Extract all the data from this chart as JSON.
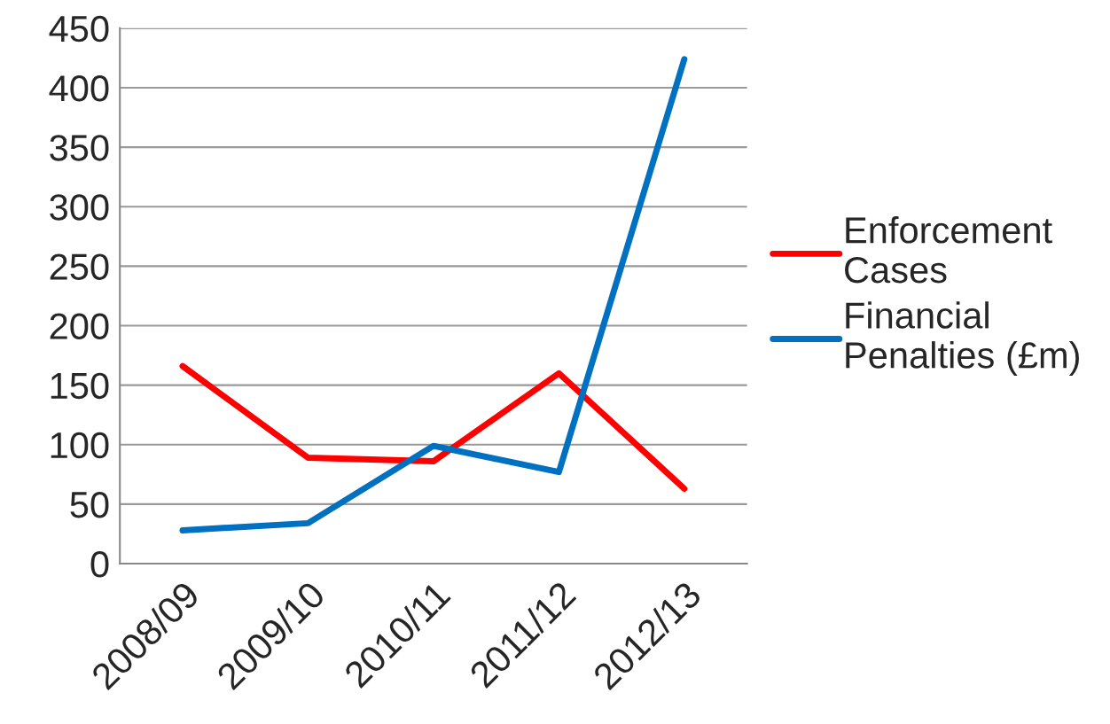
{
  "chart_data": {
    "type": "line",
    "categories": [
      "2008/09",
      "2009/10",
      "2010/11",
      "2011/12",
      "2012/13"
    ],
    "series": [
      {
        "name": "Enforcement\nCases",
        "color": "#ff0000",
        "values": [
          166,
          89,
          86,
          160,
          63
        ]
      },
      {
        "name": "Financial\nPenalties (£m)",
        "color": "#0070c0",
        "values": [
          28,
          34,
          99,
          77,
          424
        ]
      }
    ],
    "ylim": [
      0,
      450
    ],
    "yticks": [
      0,
      50,
      100,
      150,
      200,
      250,
      300,
      350,
      400,
      450
    ],
    "grid": "y",
    "legend": "right",
    "marker": "none",
    "line_style": "solid"
  }
}
